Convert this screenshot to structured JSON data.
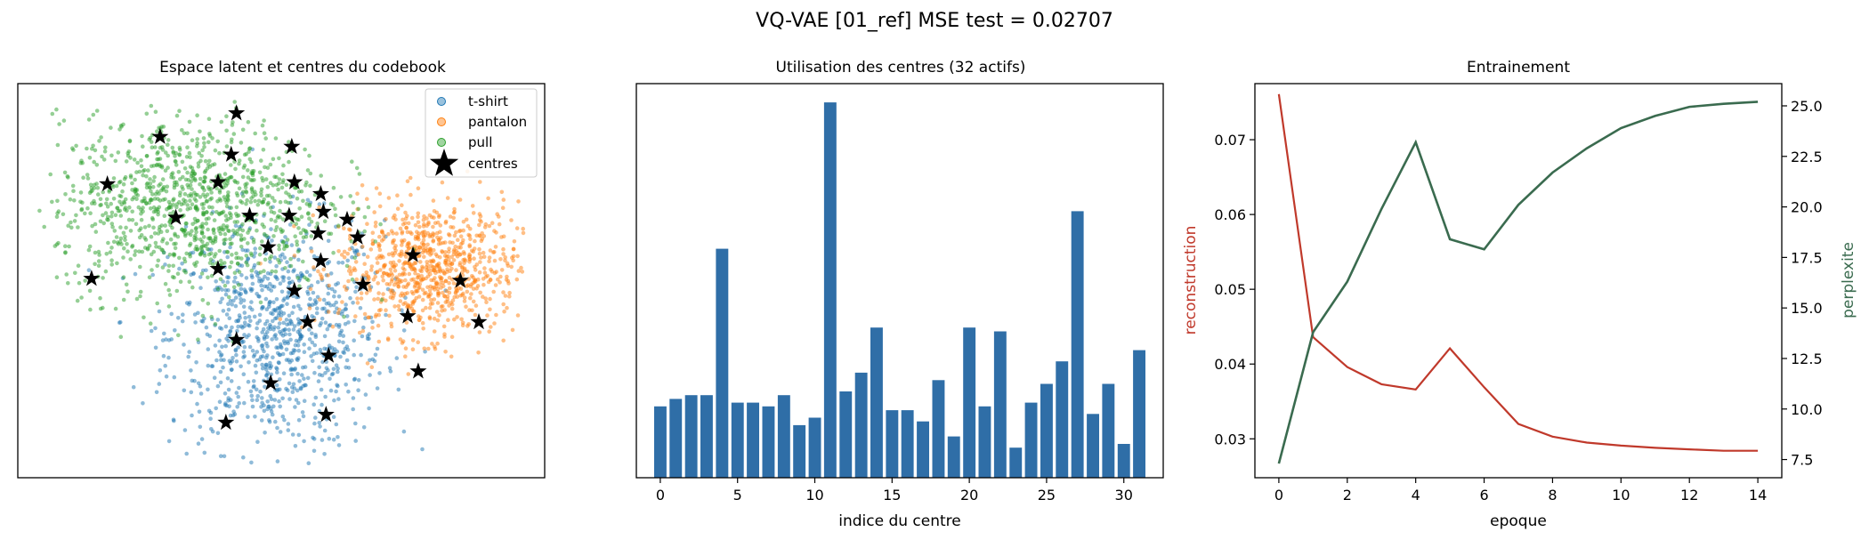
{
  "suptitle": "VQ-VAE [01_ref]   MSE test = 0.02707",
  "colors": {
    "tshirt": "#1f77b4",
    "pantalon": "#ff7f0e",
    "pull": "#2ca02c",
    "bars": "#2f6ea7",
    "reconstruction": "#c0392b",
    "perplexite": "#3a6b4f"
  },
  "chart_data": [
    {
      "type": "scatter",
      "title": "Espace latent et centres du codebook",
      "xlabel": "",
      "ylabel": "",
      "axes_visible": false,
      "legend_placement": "top-right",
      "legend": [
        "t-shirt",
        "pantalon",
        "pull",
        "centres"
      ],
      "xlim": [
        0,
        100
      ],
      "ylim": [
        0,
        100
      ],
      "clusters": [
        {
          "name": "t-shirt",
          "center": [
            49,
            36
          ],
          "spread": [
            12,
            17
          ],
          "count": 900
        },
        {
          "name": "pantalon",
          "center": [
            78,
            53
          ],
          "spread": [
            10,
            10
          ],
          "count": 850
        },
        {
          "name": "pull",
          "center": [
            33,
            69
          ],
          "spread": [
            15,
            13
          ],
          "count": 1100
        }
      ],
      "centres": [
        [
          41.5,
          92.5
        ],
        [
          27,
          86.5
        ],
        [
          52,
          84
        ],
        [
          40.5,
          82
        ],
        [
          38,
          75
        ],
        [
          52.5,
          75
        ],
        [
          17,
          74.5
        ],
        [
          57.5,
          72
        ],
        [
          30,
          66
        ],
        [
          44,
          66.5
        ],
        [
          51.5,
          66.5
        ],
        [
          58,
          67.5
        ],
        [
          62.5,
          65.5
        ],
        [
          57,
          62
        ],
        [
          47.5,
          58.5
        ],
        [
          64.5,
          61
        ],
        [
          75,
          56.5
        ],
        [
          57.5,
          55
        ],
        [
          38,
          53
        ],
        [
          14,
          50.5
        ],
        [
          65.5,
          49
        ],
        [
          84,
          50
        ],
        [
          52.5,
          47.5
        ],
        [
          74,
          41
        ],
        [
          55,
          39.5
        ],
        [
          87.5,
          39.5
        ],
        [
          41.5,
          35
        ],
        [
          59,
          31
        ],
        [
          76,
          27
        ],
        [
          48,
          24
        ],
        [
          39.5,
          14
        ],
        [
          58.5,
          16
        ]
      ]
    },
    {
      "type": "bar",
      "title": "Utilisation des centres (32 actifs)",
      "xlabel": "indice du centre",
      "ylabel": "",
      "yticks_visible": false,
      "xticks": [
        0,
        5,
        10,
        15,
        20,
        25,
        30
      ],
      "categories": [
        0,
        1,
        2,
        3,
        4,
        5,
        6,
        7,
        8,
        9,
        10,
        11,
        12,
        13,
        14,
        15,
        16,
        17,
        18,
        19,
        20,
        21,
        22,
        23,
        24,
        25,
        26,
        27,
        28,
        29,
        30,
        31
      ],
      "values": [
        19,
        21,
        22,
        22,
        61,
        20,
        20,
        19,
        22,
        14,
        16,
        100,
        23,
        28,
        40,
        18,
        18,
        15,
        26,
        11,
        40,
        19,
        39,
        8,
        20,
        25,
        31,
        71,
        17,
        25,
        9,
        34
      ],
      "ylim": [
        0,
        105
      ]
    },
    {
      "type": "line",
      "title": "Entrainement",
      "xlabel": "epoque",
      "xlim": [
        -0.7,
        14.7
      ],
      "xticks": [
        0,
        2,
        4,
        6,
        8,
        10,
        12,
        14
      ],
      "x": [
        0,
        1,
        2,
        3,
        4,
        5,
        6,
        7,
        8,
        9,
        10,
        11,
        12,
        13,
        14
      ],
      "y_left": {
        "label": "reconstruction",
        "lim": [
          0.0248,
          0.0775
        ],
        "ticks": [
          0.03,
          0.04,
          0.05,
          0.06,
          0.07
        ],
        "tick_labels": [
          "0.03",
          "0.04",
          "0.05",
          "0.06",
          "0.07"
        ],
        "series": {
          "name": "reconstruction",
          "values": [
            0.0761,
            0.0436,
            0.0396,
            0.0373,
            0.0366,
            0.0421,
            0.0369,
            0.032,
            0.0303,
            0.0295,
            0.0291,
            0.0288,
            0.0286,
            0.0284,
            0.0284
          ]
        }
      },
      "y_right": {
        "label": "perplexite",
        "lim": [
          6.6,
          26.1
        ],
        "ticks": [
          7.5,
          10.0,
          12.5,
          15.0,
          17.5,
          20.0,
          22.5,
          25.0
        ],
        "tick_labels": [
          "7.5",
          "10.0",
          "12.5",
          "15.0",
          "17.5",
          "20.0",
          "22.5",
          "25.0"
        ],
        "series": {
          "name": "perplexite",
          "values": [
            7.3,
            13.8,
            16.3,
            19.9,
            23.2,
            18.4,
            17.9,
            20.1,
            21.7,
            22.9,
            23.9,
            24.5,
            24.95,
            25.1,
            25.2
          ]
        }
      }
    }
  ]
}
